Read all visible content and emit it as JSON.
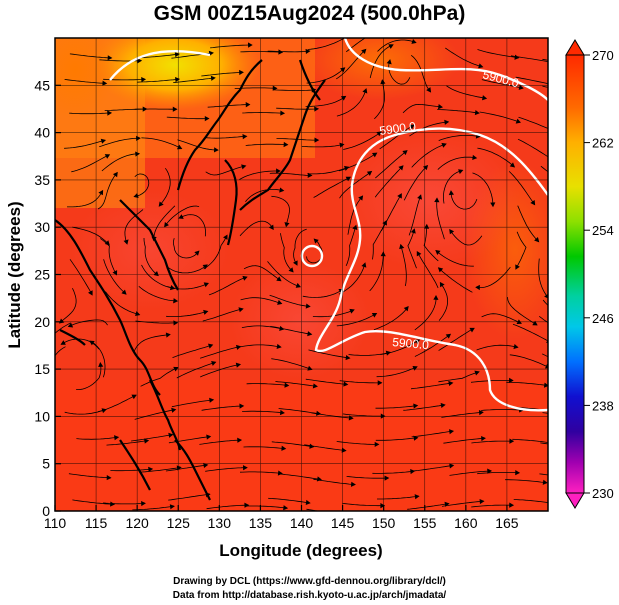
{
  "title": "GSM 00Z15Aug2024 (500.0hPa)",
  "x_axis": {
    "label": "Longitude (degrees)",
    "ticks": [
      "110",
      "115",
      "120",
      "125",
      "130",
      "135",
      "140",
      "145",
      "150",
      "155",
      "160",
      "165"
    ]
  },
  "y_axis": {
    "label": "Latitude  (degrees)",
    "ticks": [
      "0",
      "5",
      "10",
      "15",
      "20",
      "25",
      "30",
      "35",
      "40",
      "45"
    ]
  },
  "colorbar": {
    "labels": [
      "270",
      "262",
      "254",
      "246",
      "238",
      "230"
    ],
    "colors": [
      "#ff1a00",
      "#ff6a00",
      "#ffb000",
      "#e8e000",
      "#8ee000",
      "#00c800",
      "#00d0a0",
      "#00c8e8",
      "#0070ff",
      "#1010d0",
      "#3000a0",
      "#a000b0",
      "#ff20c0"
    ]
  },
  "contours": [
    {
      "label": "5900.0"
    },
    {
      "label": "5900.0"
    },
    {
      "label": "5900.0"
    }
  ],
  "credits": {
    "line1": "Drawing by DCL (https://www.gfd-dennou.org/library/dcl/)",
    "line2": "Data from http://database.rish.kyoto-u.ac.jp/arch/jmadata/"
  }
}
